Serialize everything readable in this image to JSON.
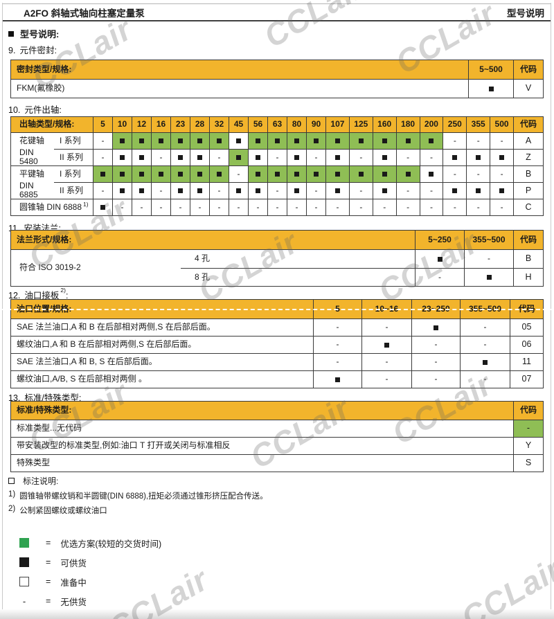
{
  "header": {
    "title": "A2FO 斜轴式轴向柱塞定量泵",
    "doc_type": "型号说明",
    "model_heading": "型号说明:"
  },
  "watermark_text": "CCLair",
  "colors": {
    "header_yellow": "#F2B42C",
    "cell_green": "#8FBE55",
    "legend_green": "#2FA351",
    "mark_black": "#1A1A1A"
  },
  "marker_key": {
    "G": "preferred (green)",
    "B": "available (black square)",
    "-": "not available"
  },
  "sections": {
    "seal": {
      "no": "9.",
      "heading": "元件密封:",
      "col_label": "密封类型/规格:",
      "col_range": "5~500",
      "col_code": "代码",
      "rows": [
        {
          "label": "FKM(氟橡胶)",
          "mark": "B",
          "code": "V"
        }
      ]
    },
    "shaft": {
      "no": "10.",
      "heading": "元件出轴:",
      "col_label": "出轴类型/规格:",
      "col_code": "代码",
      "sizes": [
        "5",
        "10",
        "12",
        "16",
        "23",
        "28",
        "32",
        "45",
        "56",
        "63",
        "80",
        "90",
        "107",
        "125",
        "160",
        "180",
        "200",
        "250",
        "355",
        "500"
      ],
      "rows": [
        {
          "name": "花键轴",
          "series": "I 系列",
          "cells": [
            "-",
            "G",
            "G",
            "G",
            "G",
            "G",
            "G",
            "B",
            "G",
            "G",
            "G",
            "G",
            "G",
            "G",
            "G",
            "G",
            "G",
            "-",
            "-",
            "-"
          ],
          "code": "A"
        },
        {
          "name": "DIN 5480",
          "series": "II 系列",
          "cells": [
            "-",
            "B",
            "B",
            "-",
            "B",
            "B",
            "-",
            "G",
            "B",
            "-",
            "B",
            "-",
            "B",
            "-",
            "B",
            "-",
            "-",
            "B",
            "B",
            "B"
          ],
          "code": "Z"
        },
        {
          "name": "平键轴",
          "series": "I 系列",
          "cells": [
            "G",
            "G",
            "G",
            "G",
            "G",
            "G",
            "G",
            "-",
            "G",
            "G",
            "G",
            "G",
            "G",
            "G",
            "G",
            "G",
            "B",
            "-",
            "-",
            "-"
          ],
          "code": "B"
        },
        {
          "name": "DIN 6885",
          "series": "II 系列",
          "cells": [
            "-",
            "B",
            "B",
            "-",
            "B",
            "B",
            "-",
            "B",
            "B",
            "-",
            "B",
            "-",
            "B",
            "-",
            "B",
            "-",
            "-",
            "B",
            "B",
            "B"
          ],
          "code": "P"
        },
        {
          "name": "圆锥轴 DIN 6888",
          "sup": "1)",
          "cells": [
            "B",
            "-",
            "-",
            "-",
            "-",
            "-",
            "-",
            "-",
            "-",
            "-",
            "-",
            "-",
            "-",
            "-",
            "-",
            "-",
            "-",
            "-",
            "-",
            "-"
          ],
          "code": "C"
        }
      ]
    },
    "flange": {
      "no": "11.",
      "heading": "安装法兰:",
      "col_label": "法兰形式/规格:",
      "col_ranges": [
        "5~250",
        "355~500"
      ],
      "col_code": "代码",
      "group_label": "符合 ISO 3019-2",
      "rows": [
        {
          "label": "4 孔",
          "cells": [
            "B",
            "-"
          ],
          "code": "B"
        },
        {
          "label": "8 孔",
          "cells": [
            "-",
            "B"
          ],
          "code": "H"
        }
      ]
    },
    "ports": {
      "no": "12.",
      "heading": "油口接板",
      "sup": "2)",
      "suffix": ":",
      "col_label": "油口位置/规格:",
      "col_ranges": [
        "5",
        "10~16",
        "23~250",
        "355~500"
      ],
      "col_code": "代码",
      "rows": [
        {
          "label": "SAE 法兰油口,A 和 B 在后部相对两侧,S 在后部后面。",
          "cells": [
            "-",
            "-",
            "B",
            "-"
          ],
          "code": "05"
        },
        {
          "label": "螺纹油口,A 和 B 在后部相对两侧,S 在后部后面。",
          "cells": [
            "-",
            "B",
            "-",
            "-"
          ],
          "code": "06"
        },
        {
          "label": "SAE 法兰油口,A 和 B, S 在后部后面。",
          "cells": [
            "-",
            "-",
            "-",
            "B"
          ],
          "code": "11"
        },
        {
          "label": "螺纹油口,A/B, S 在后部相对两侧 。",
          "cells": [
            "B",
            "-",
            "-",
            "-"
          ],
          "code": "07"
        }
      ]
    },
    "standard": {
      "no": "13.",
      "heading": "标准/特殊类型:",
      "col_label": "标准/特殊类型:",
      "col_code": "代码",
      "rows": [
        {
          "label": "标准类型...无代码",
          "code": "-",
          "green": true
        },
        {
          "label": "带安装改型的标准类型,例如:油口 T 打开或关闭与标准相反",
          "code": "Y"
        },
        {
          "label": "特殊类型",
          "code": "S"
        }
      ]
    }
  },
  "notes": {
    "bullet_heading": "标注说明:",
    "items": [
      {
        "no": "1)",
        "text": "圆锥轴带螺纹销和半圆键(DIN 6888),扭矩必须通过锥形挤压配合传送。"
      },
      {
        "no": "2)",
        "text": "公制紧固螺纹或螺纹油口"
      }
    ]
  },
  "legend": {
    "equals": "=",
    "items": [
      {
        "symbol": "green-square",
        "label": "优选方案(较短的交货时间)"
      },
      {
        "symbol": "black-square",
        "label": "可供货"
      },
      {
        "symbol": "white-square",
        "label": "准备中"
      },
      {
        "symbol": "dash",
        "label": "无供货"
      }
    ]
  }
}
